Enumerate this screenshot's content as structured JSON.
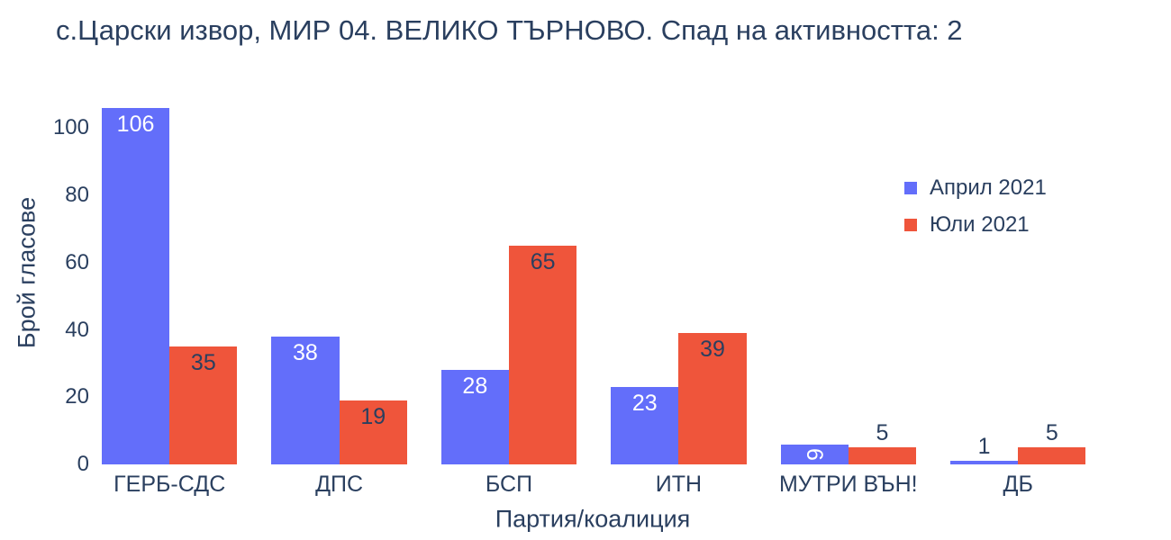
{
  "chart_data": {
    "type": "bar",
    "title": "с.Царски извор, МИР 04. ВЕЛИКО ТЪРНОВО. Спад на активността: 2",
    "xlabel": "Партия/коалиция",
    "ylabel": "Брой гласове",
    "categories": [
      "ГЕРБ-СДС",
      "ДПС",
      "БСП",
      "ИТН",
      "МУТРИ ВЪН!",
      "ДБ"
    ],
    "yticks": [
      0,
      20,
      40,
      60,
      80,
      100
    ],
    "ylim": [
      0,
      110
    ],
    "grid": false,
    "legend_position": "inside-top-right",
    "text_color": "#2a3f5f",
    "series": [
      {
        "name": "Април 2021",
        "color": "#636EFA",
        "values": [
          106,
          38,
          28,
          23,
          6,
          1
        ],
        "value_labels": [
          "inside-white",
          "inside-white",
          "inside-white",
          "inside-white",
          "inside-rotated-white",
          "outside-dark"
        ]
      },
      {
        "name": "Юли 2021",
        "color": "#EF553B",
        "values": [
          35,
          19,
          65,
          39,
          5,
          5
        ],
        "value_labels": [
          "inside-dark",
          "inside-dark",
          "inside-dark",
          "inside-dark",
          "outside-dark",
          "outside-dark"
        ]
      }
    ]
  }
}
